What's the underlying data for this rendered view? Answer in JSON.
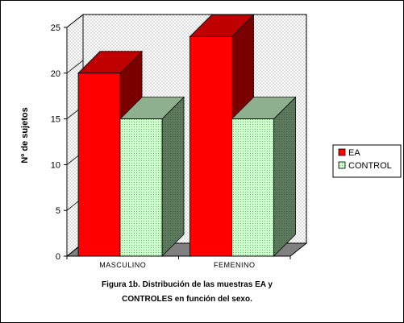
{
  "chart_data": {
    "type": "bar",
    "categories": [
      "MASCULINO",
      "FEMENINO"
    ],
    "series": [
      {
        "name": "EA",
        "values": [
          20,
          24
        ],
        "color": "#ff0000"
      },
      {
        "name": "CONTROL",
        "values": [
          15,
          15
        ],
        "color": "#ccffcc"
      }
    ],
    "ylabel": "Nº de sujetos",
    "xlabel": "",
    "ylim": [
      0,
      25
    ],
    "yticks": [
      0,
      5,
      10,
      15,
      20,
      25
    ],
    "grid": false,
    "three_d": true,
    "legend_position": "right",
    "caption_line1": "Figura 1b. Distribución de las muestras EA y",
    "caption_line2": "CONTROLES en función del sexo."
  }
}
